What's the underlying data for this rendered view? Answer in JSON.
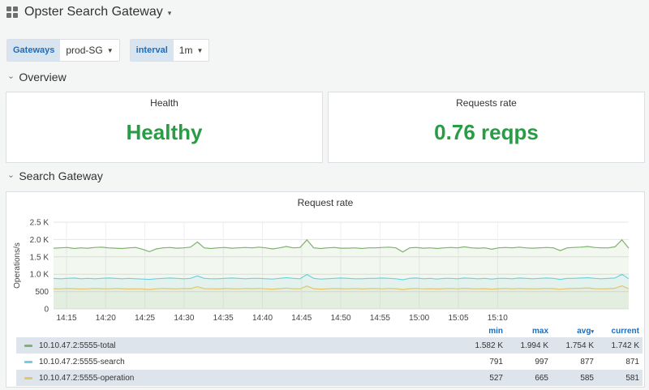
{
  "header": {
    "title": "Opster Search Gateway",
    "caret": "▾"
  },
  "variables": [
    {
      "label": "Gateways",
      "value": "prod-SG"
    },
    {
      "label": "interval",
      "value": "1m"
    }
  ],
  "rows": {
    "overview": "Overview",
    "search_gateway": "Search Gateway"
  },
  "health_panel": {
    "title": "Health",
    "value": "Healthy"
  },
  "requests_panel": {
    "title": "Requests rate",
    "value": "0.76 reqps"
  },
  "colors": {
    "healthy": "#299c46",
    "total": "#7eb26d",
    "search": "#6ed0e0",
    "operation": "#e5c46b",
    "accent": "#1f6db8"
  },
  "chart_panel": {
    "title": "Request rate",
    "chart_data": {
      "type": "line",
      "ylabel": "Operations/s",
      "y_ticks": [
        "2.5 K",
        "2.0 K",
        "1.5 K",
        "1.0 K",
        "500",
        "0"
      ],
      "ylim": [
        0,
        2500
      ],
      "x_ticks": [
        "14:15",
        "14:20",
        "14:25",
        "14:30",
        "14:35",
        "14:40",
        "14:45",
        "14:50",
        "14:55",
        "15:00",
        "15:05",
        "15:10"
      ],
      "grid": true,
      "series": [
        {
          "name": "10.10.47.2:5555-total",
          "color": "#7eb26d",
          "values": [
            1750,
            1760,
            1770,
            1740,
            1760,
            1750,
            1770,
            1780,
            1760,
            1750,
            1740,
            1760,
            1770,
            1720,
            1650,
            1730,
            1760,
            1770,
            1750,
            1760,
            1780,
            1930,
            1760,
            1740,
            1760,
            1770,
            1750,
            1760,
            1770,
            1760,
            1780,
            1760,
            1730,
            1760,
            1800,
            1760,
            1770,
            1990,
            1760,
            1740,
            1760,
            1770,
            1750,
            1750,
            1760,
            1740,
            1760,
            1760,
            1770,
            1780,
            1760,
            1640,
            1760,
            1770,
            1750,
            1760,
            1740,
            1760,
            1770,
            1760,
            1790,
            1760,
            1750,
            1760,
            1720,
            1760,
            1770,
            1760,
            1780,
            1760,
            1750,
            1760,
            1770,
            1760,
            1680,
            1760,
            1770,
            1780,
            1800,
            1770,
            1760,
            1760,
            1790,
            1990,
            1750
          ]
        },
        {
          "name": "10.10.47.2:5555-search",
          "color": "#6ed0e0",
          "values": [
            880,
            870,
            880,
            890,
            870,
            880,
            870,
            880,
            890,
            880,
            870,
            880,
            870,
            860,
            850,
            870,
            880,
            890,
            880,
            870,
            880,
            950,
            880,
            870,
            870,
            880,
            890,
            880,
            870,
            880,
            880,
            870,
            860,
            880,
            900,
            880,
            870,
            990,
            880,
            860,
            870,
            880,
            890,
            880,
            870,
            870,
            880,
            880,
            890,
            880,
            870,
            840,
            880,
            890,
            870,
            880,
            860,
            880,
            880,
            870,
            890,
            880,
            870,
            880,
            860,
            880,
            880,
            870,
            890,
            880,
            870,
            880,
            890,
            880,
            850,
            880,
            880,
            890,
            900,
            880,
            870,
            880,
            890,
            997,
            870
          ]
        },
        {
          "name": "10.10.47.2:5555-operation",
          "color": "#e5c46b",
          "values": [
            585,
            580,
            590,
            585,
            575,
            580,
            590,
            585,
            580,
            590,
            585,
            575,
            580,
            575,
            560,
            580,
            590,
            585,
            580,
            590,
            585,
            640,
            585,
            580,
            575,
            590,
            585,
            580,
            590,
            585,
            590,
            580,
            570,
            585,
            600,
            585,
            580,
            660,
            585,
            570,
            580,
            590,
            585,
            580,
            590,
            575,
            585,
            590,
            580,
            590,
            585,
            560,
            585,
            590,
            580,
            585,
            575,
            585,
            590,
            580,
            595,
            585,
            580,
            585,
            570,
            585,
            590,
            580,
            590,
            585,
            580,
            585,
            590,
            585,
            565,
            585,
            590,
            595,
            605,
            585,
            580,
            585,
            595,
            665,
            580
          ]
        }
      ]
    },
    "legend": {
      "headers": {
        "min": "min",
        "max": "max",
        "avg": "avg",
        "current": "current",
        "sort": "▾"
      },
      "rows": [
        {
          "name": "10.10.47.2:5555-total",
          "min": "1.582 K",
          "max": "1.994 K",
          "avg": "1.754 K",
          "current": "1.742 K"
        },
        {
          "name": "10.10.47.2:5555-search",
          "min": "791",
          "max": "997",
          "avg": "877",
          "current": "871"
        },
        {
          "name": "10.10.47.2:5555-operation",
          "min": "527",
          "max": "665",
          "avg": "585",
          "current": "581"
        }
      ]
    }
  }
}
